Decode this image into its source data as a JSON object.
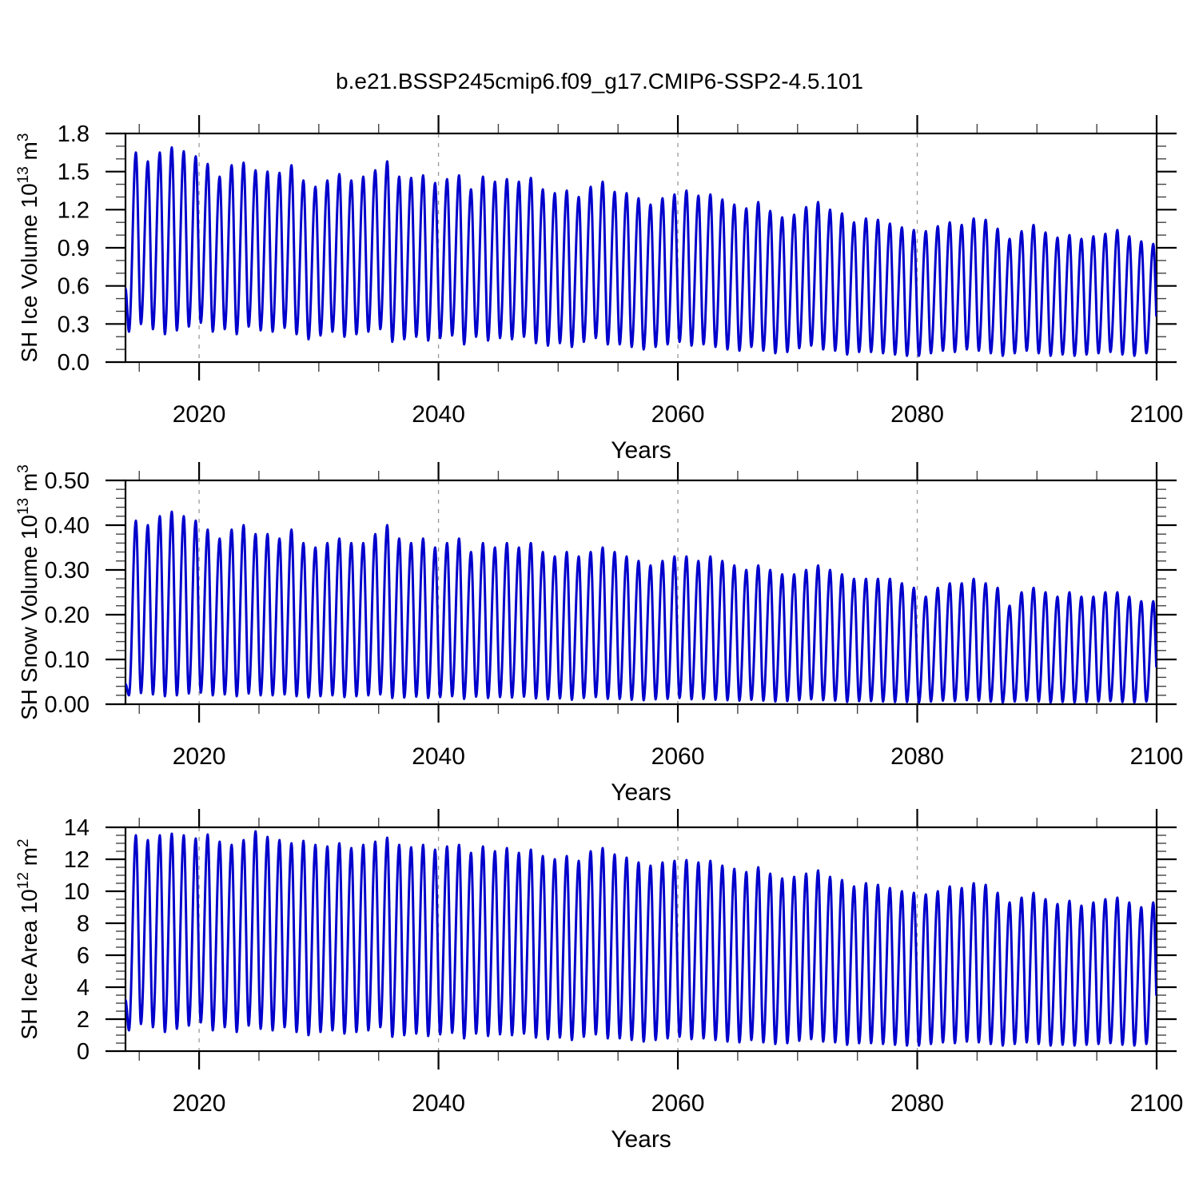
{
  "title": "b.e21.BSSP245cmip6.f09_g17.CMIP6-SSP2-4.5.101",
  "colors": {
    "line": "#0000cc",
    "grid": "#999999",
    "frame": "#000000",
    "text": "#000000"
  },
  "x_axis": {
    "label": "Years",
    "lim": [
      2013.85,
      2100.0
    ],
    "major_ticks": [
      2020,
      2040,
      2060,
      2080,
      2100
    ],
    "tick_labels": [
      "2020",
      "2040",
      "2060",
      "2080",
      "2100"
    ],
    "minor_step": 5,
    "grid_years": [
      2020,
      2040,
      2060,
      2080
    ]
  },
  "chart_data": [
    {
      "type": "line",
      "id": "sh-ice-volume",
      "ylabel_text": "SH Ice Volume 10^13 m^3",
      "ylabel_segments": [
        {
          "t": "SH Ice Volume 10"
        },
        {
          "t": "13",
          "sup": true
        },
        {
          "t": " m"
        },
        {
          "t": "3",
          "sup": true
        }
      ],
      "xlabel": "Years",
      "ylim": [
        0,
        1.8
      ],
      "ymajor": 0.3,
      "yminor": 0.1,
      "ytick_labels": [
        "0.0",
        "0.3",
        "0.6",
        "0.9",
        "1.2",
        "1.5",
        "1.8"
      ],
      "grid": "vertical-dashed-at-major-x",
      "seasonal": {
        "year_start": 2014,
        "start_value": 0.58,
        "peak_phase": 0.72,
        "trough_phase": 0.14,
        "annual_max": [
          1.65,
          1.58,
          1.65,
          1.69,
          1.66,
          1.62,
          1.56,
          1.46,
          1.55,
          1.57,
          1.51,
          1.5,
          1.49,
          1.55,
          1.43,
          1.38,
          1.43,
          1.48,
          1.43,
          1.46,
          1.51,
          1.58,
          1.46,
          1.45,
          1.47,
          1.41,
          1.44,
          1.47,
          1.36,
          1.46,
          1.42,
          1.44,
          1.42,
          1.45,
          1.36,
          1.33,
          1.35,
          1.3,
          1.38,
          1.42,
          1.34,
          1.33,
          1.29,
          1.24,
          1.29,
          1.32,
          1.35,
          1.31,
          1.32,
          1.28,
          1.24,
          1.21,
          1.26,
          1.19,
          1.14,
          1.16,
          1.22,
          1.26,
          1.2,
          1.17,
          1.1,
          1.13,
          1.12,
          1.09,
          1.06,
          1.04,
          1.03,
          1.07,
          1.1,
          1.08,
          1.13,
          1.12,
          1.05,
          0.97,
          1.03,
          1.08,
          1.02,
          0.98,
          1.0,
          0.97,
          0.99,
          1.01,
          1.04,
          0.99,
          0.95,
          0.93
        ],
        "annual_min": [
          0.24,
          0.3,
          0.26,
          0.22,
          0.25,
          0.28,
          0.31,
          0.24,
          0.26,
          0.22,
          0.28,
          0.25,
          0.24,
          0.27,
          0.22,
          0.18,
          0.21,
          0.24,
          0.2,
          0.22,
          0.24,
          0.26,
          0.16,
          0.18,
          0.2,
          0.17,
          0.19,
          0.21,
          0.14,
          0.2,
          0.17,
          0.19,
          0.18,
          0.2,
          0.15,
          0.13,
          0.15,
          0.12,
          0.16,
          0.19,
          0.14,
          0.14,
          0.12,
          0.1,
          0.12,
          0.14,
          0.16,
          0.13,
          0.14,
          0.12,
          0.1,
          0.09,
          0.12,
          0.09,
          0.07,
          0.08,
          0.11,
          0.13,
          0.1,
          0.09,
          0.06,
          0.08,
          0.08,
          0.07,
          0.06,
          0.05,
          0.05,
          0.07,
          0.09,
          0.08,
          0.1,
          0.09,
          0.07,
          0.05,
          0.07,
          0.09,
          0.07,
          0.05,
          0.06,
          0.05,
          0.06,
          0.07,
          0.08,
          0.06,
          0.05,
          0.07
        ]
      }
    },
    {
      "type": "line",
      "id": "sh-snow-volume",
      "ylabel_text": "SH Snow Volume 10^13 m^3",
      "ylabel_segments": [
        {
          "t": "SH Snow Volume 10"
        },
        {
          "t": "13",
          "sup": true
        },
        {
          "t": " m"
        },
        {
          "t": "3",
          "sup": true
        }
      ],
      "xlabel": "Years",
      "ylim": [
        0,
        0.5
      ],
      "ymajor": 0.1,
      "yminor": 0.02,
      "ytick_labels": [
        "0.00",
        "0.10",
        "0.20",
        "0.30",
        "0.40",
        "0.50"
      ],
      "grid": "vertical-dashed-at-major-x",
      "seasonal": {
        "year_start": 2014,
        "start_value": 0.045,
        "peak_phase": 0.72,
        "trough_phase": 0.14,
        "annual_max": [
          0.41,
          0.4,
          0.42,
          0.43,
          0.42,
          0.41,
          0.39,
          0.37,
          0.39,
          0.4,
          0.38,
          0.38,
          0.37,
          0.39,
          0.36,
          0.35,
          0.36,
          0.37,
          0.36,
          0.36,
          0.38,
          0.4,
          0.37,
          0.36,
          0.37,
          0.35,
          0.36,
          0.37,
          0.34,
          0.36,
          0.35,
          0.36,
          0.35,
          0.36,
          0.34,
          0.33,
          0.34,
          0.33,
          0.34,
          0.35,
          0.34,
          0.33,
          0.32,
          0.31,
          0.32,
          0.33,
          0.33,
          0.32,
          0.33,
          0.32,
          0.31,
          0.3,
          0.31,
          0.3,
          0.29,
          0.29,
          0.3,
          0.31,
          0.3,
          0.29,
          0.28,
          0.28,
          0.28,
          0.28,
          0.27,
          0.26,
          0.24,
          0.26,
          0.27,
          0.27,
          0.28,
          0.27,
          0.26,
          0.22,
          0.25,
          0.26,
          0.25,
          0.24,
          0.25,
          0.24,
          0.24,
          0.25,
          0.25,
          0.24,
          0.23,
          0.23
        ],
        "annual_min": [
          0.02,
          0.025,
          0.022,
          0.018,
          0.02,
          0.024,
          0.026,
          0.02,
          0.022,
          0.018,
          0.024,
          0.02,
          0.02,
          0.022,
          0.018,
          0.015,
          0.018,
          0.02,
          0.016,
          0.018,
          0.02,
          0.022,
          0.014,
          0.015,
          0.017,
          0.014,
          0.016,
          0.018,
          0.012,
          0.017,
          0.014,
          0.016,
          0.015,
          0.017,
          0.013,
          0.011,
          0.013,
          0.01,
          0.014,
          0.016,
          0.012,
          0.012,
          0.01,
          0.009,
          0.011,
          0.012,
          0.014,
          0.011,
          0.012,
          0.01,
          0.009,
          0.008,
          0.01,
          0.008,
          0.006,
          0.007,
          0.009,
          0.011,
          0.009,
          0.008,
          0.005,
          0.007,
          0.007,
          0.006,
          0.005,
          0.005,
          0.004,
          0.006,
          0.008,
          0.007,
          0.009,
          0.008,
          0.006,
          0.004,
          0.006,
          0.008,
          0.006,
          0.004,
          0.005,
          0.004,
          0.005,
          0.006,
          0.007,
          0.005,
          0.004,
          0.006
        ]
      }
    },
    {
      "type": "line",
      "id": "sh-ice-area",
      "ylabel_text": "SH Ice Area 10^12 m^2",
      "ylabel_segments": [
        {
          "t": "SH Ice Area 10"
        },
        {
          "t": "12",
          "sup": true
        },
        {
          "t": " m"
        },
        {
          "t": "2",
          "sup": true
        }
      ],
      "xlabel": "Years",
      "ylim": [
        0,
        14
      ],
      "ymajor": 2,
      "yminor": 0.5,
      "ytick_labels": [
        "0",
        "2",
        "4",
        "6",
        "8",
        "10",
        "12",
        "14"
      ],
      "grid": "vertical-dashed-at-major-x",
      "seasonal": {
        "year_start": 2014,
        "start_value": 3.2,
        "peak_phase": 0.72,
        "trough_phase": 0.14,
        "annual_max": [
          13.5,
          13.2,
          13.5,
          13.6,
          13.5,
          13.3,
          13.55,
          13.1,
          12.9,
          13.2,
          13.75,
          13.4,
          13.2,
          13.0,
          13.15,
          12.9,
          12.8,
          13.0,
          12.7,
          12.9,
          13.1,
          13.35,
          12.9,
          12.75,
          12.9,
          12.6,
          12.8,
          12.9,
          12.4,
          12.8,
          12.5,
          12.7,
          12.4,
          12.6,
          12.2,
          12.0,
          12.2,
          11.9,
          12.5,
          12.7,
          12.3,
          12.1,
          11.8,
          11.6,
          11.8,
          11.9,
          11.95,
          11.8,
          11.9,
          11.6,
          11.4,
          11.2,
          11.5,
          11.1,
          10.8,
          10.9,
          11.1,
          11.3,
          10.9,
          10.7,
          10.3,
          10.5,
          10.4,
          10.2,
          10.0,
          9.9,
          9.8,
          10.0,
          10.3,
          10.2,
          10.5,
          10.4,
          9.9,
          9.3,
          9.6,
          9.9,
          9.5,
          9.2,
          9.4,
          9.1,
          9.3,
          9.5,
          9.6,
          9.3,
          9.0,
          9.3
        ],
        "annual_min": [
          1.3,
          1.7,
          1.5,
          1.2,
          1.4,
          1.6,
          1.8,
          1.3,
          1.5,
          1.2,
          1.6,
          1.4,
          1.3,
          1.5,
          1.2,
          1.0,
          1.2,
          1.3,
          1.1,
          1.2,
          1.3,
          1.5,
          0.9,
          1.0,
          1.1,
          0.95,
          1.05,
          1.15,
          0.8,
          1.1,
          0.95,
          1.05,
          1.0,
          1.1,
          0.85,
          0.75,
          0.85,
          0.7,
          0.9,
          1.05,
          0.8,
          0.8,
          0.7,
          0.6,
          0.7,
          0.8,
          0.9,
          0.75,
          0.8,
          0.7,
          0.6,
          0.55,
          0.7,
          0.55,
          0.45,
          0.5,
          0.65,
          0.75,
          0.6,
          0.55,
          0.4,
          0.5,
          0.5,
          0.45,
          0.4,
          0.35,
          0.35,
          0.45,
          0.55,
          0.5,
          0.6,
          0.55,
          0.45,
          0.35,
          0.45,
          0.55,
          0.45,
          0.35,
          0.4,
          0.35,
          0.4,
          0.45,
          0.5,
          0.4,
          0.35,
          0.45
        ]
      }
    }
  ]
}
